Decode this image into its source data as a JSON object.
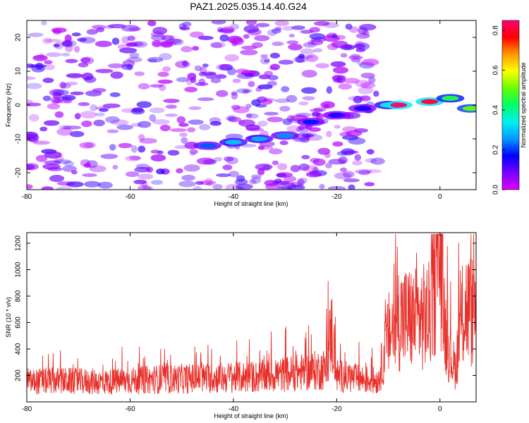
{
  "title": "PAZ1.2025.035.14.40.G24",
  "colors": {
    "snr_line": "#e8302a",
    "colorbar": [
      "#e000ff",
      "#7700ff",
      "#0000ff",
      "#0099ff",
      "#00f0f0",
      "#00ff66",
      "#66ff00",
      "#ffff00",
      "#ff9900",
      "#ff0000",
      "#ff0077"
    ]
  },
  "chart_data": [
    {
      "type": "heatmap",
      "xlabel": "Height of straight line (km)",
      "ylabel": "Frequency (Hz)",
      "xlim": [
        -80,
        7
      ],
      "ylim": [
        -25,
        25
      ],
      "xticks": [
        -80,
        -60,
        -40,
        -20,
        0
      ],
      "yticks": [
        -20,
        -10,
        0,
        10,
        20
      ],
      "colorbar": {
        "label": "Normalized spectral amplitude",
        "range": [
          0,
          0.85
        ],
        "ticks": [
          0.0,
          0.2,
          0.4,
          0.6,
          0.8
        ]
      },
      "dominant_ridge": [
        {
          "x": -45,
          "y": -12,
          "amp": 0.22
        },
        {
          "x": -40,
          "y": -11,
          "amp": 0.3
        },
        {
          "x": -35,
          "y": -10,
          "amp": 0.28
        },
        {
          "x": -30,
          "y": -9,
          "amp": 0.25
        },
        {
          "x": -25,
          "y": -5,
          "amp": 0.18
        },
        {
          "x": -20,
          "y": -3,
          "amp": 0.15
        },
        {
          "x": -15,
          "y": -1,
          "amp": 0.16
        },
        {
          "x": -10,
          "y": 0,
          "amp": 0.35
        },
        {
          "x": -8,
          "y": 0,
          "amp": 0.85
        },
        {
          "x": -2,
          "y": 1,
          "amp": 0.8
        },
        {
          "x": 2,
          "y": 2,
          "amp": 0.45
        },
        {
          "x": 6,
          "y": -1,
          "amp": 0.5
        }
      ],
      "background_amplitude": 0.08
    },
    {
      "type": "line",
      "xlabel": "Height of straight line (km)",
      "ylabel": "SNR (10 * v/v)",
      "xlim": [
        -80,
        7
      ],
      "ylim": [
        0,
        1280
      ],
      "xticks": [
        -80,
        -60,
        -40,
        -20,
        0
      ],
      "yticks": [
        200,
        400,
        600,
        800,
        1000,
        1200
      ],
      "series": [
        {
          "x": [
            -80,
            -75,
            -70,
            -65,
            -60,
            -55,
            -50,
            -45,
            -40,
            -35,
            -30,
            -25,
            -22,
            -21,
            -20,
            -15,
            -12,
            -10,
            -8,
            -5,
            -2,
            0,
            1,
            2,
            3,
            4,
            5,
            7
          ],
          "values": [
            150,
            160,
            155,
            150,
            160,
            170,
            175,
            180,
            185,
            190,
            210,
            230,
            250,
            550,
            200,
            170,
            160,
            500,
            640,
            620,
            650,
            1200,
            560,
            350,
            250,
            580,
            720,
            660
          ]
        }
      ]
    }
  ]
}
